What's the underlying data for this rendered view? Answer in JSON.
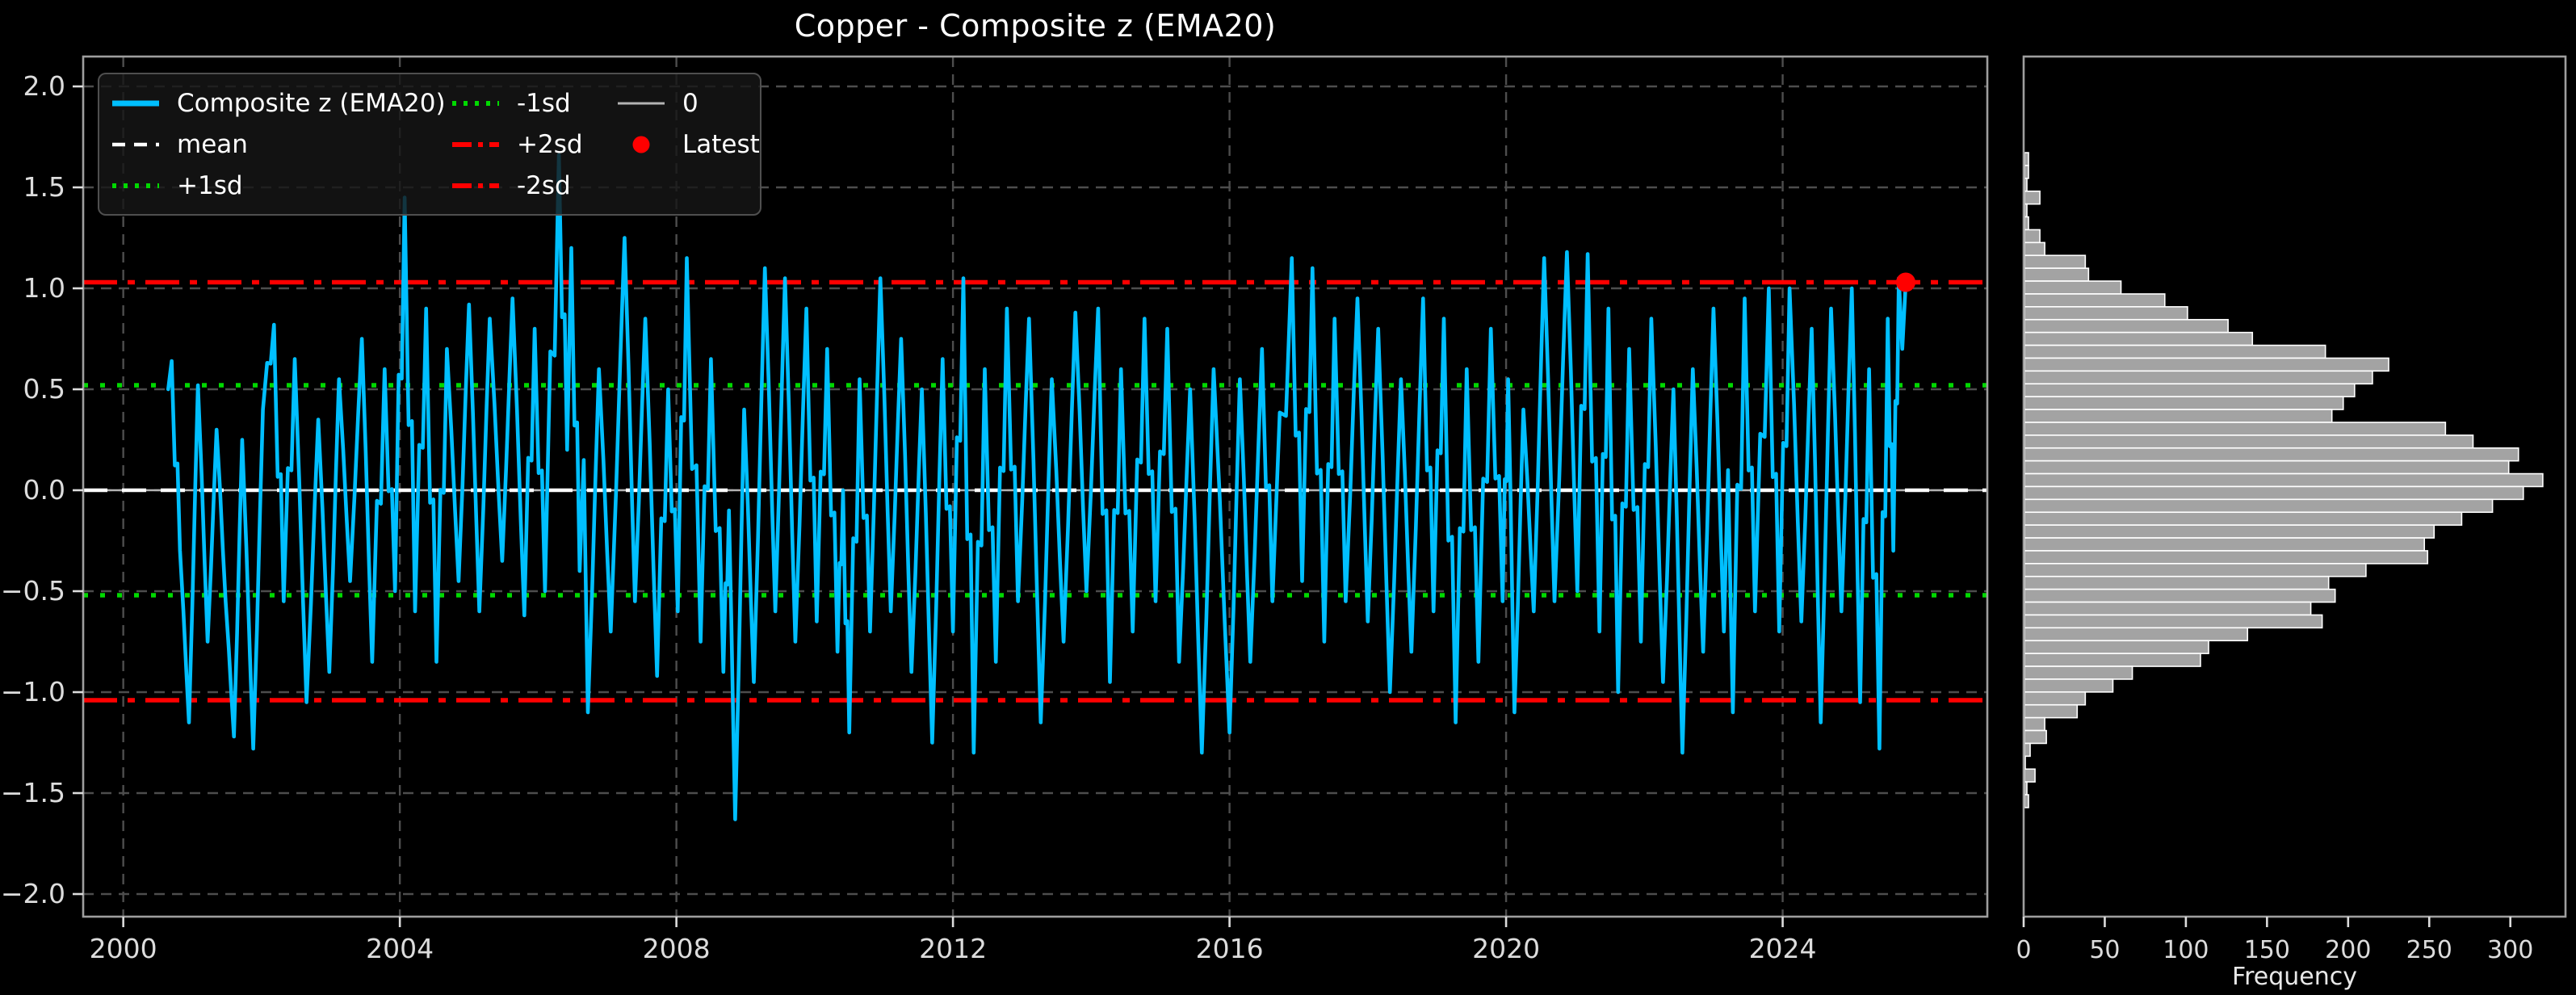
{
  "title": "Copper - Composite z (EMA20)",
  "colors": {
    "background": "#000000",
    "series_line": "#00BFFF",
    "mean_line": "#FFFFFF",
    "zero_line": "#B3B3B3",
    "sd1_line": "#00D900",
    "sd2_line": "#FF0000",
    "latest_marker": "#FF0000",
    "hist_bar": "#A3A3A3",
    "hist_bar_edge": "#FFFFFF",
    "grid": "#4D4D4D",
    "spine": "#9E9E9E",
    "tick_text": "#DCDCDC",
    "title_text": "#FFFFFF"
  },
  "legend": {
    "columns": [
      [
        {
          "label": "Composite z (EMA20)",
          "style": "cyan-solid"
        },
        {
          "label": "mean",
          "style": "white-dash"
        },
        {
          "label": "+1sd",
          "style": "green-dot"
        }
      ],
      [
        {
          "label": "-1sd",
          "style": "green-dot"
        },
        {
          "label": "+2sd",
          "style": "red-dashdot"
        },
        {
          "label": "-2sd",
          "style": "red-dashdot"
        }
      ],
      [
        {
          "label": "0",
          "style": "gray-solid"
        },
        {
          "label": "Latest",
          "style": "red-dot"
        }
      ]
    ]
  },
  "chart_data": [
    {
      "type": "line",
      "title": "Copper - Composite z (EMA20)",
      "xlabel": "",
      "ylabel": "",
      "xlim": [
        1999.42,
        2026.96
      ],
      "ylim": [
        -2.112,
        2.148
      ],
      "grid": true,
      "xticks": {
        "values": [
          2000,
          2004,
          2008,
          2012,
          2016,
          2020,
          2024
        ],
        "labels": [
          "2000",
          "2004",
          "2008",
          "2012",
          "2016",
          "2020",
          "2024"
        ]
      },
      "yticks": {
        "values": [
          2.0,
          1.5,
          1.0,
          0.5,
          0.0,
          -0.5,
          -1.0,
          -1.5,
          -2.0
        ],
        "labels": [
          "2.0",
          "1.5",
          "1.0",
          "0.5",
          "0.0",
          "−0.5",
          "−1.0",
          "−1.5",
          "−2.0"
        ]
      },
      "ref_lines": [
        {
          "name": "zero",
          "label": "0",
          "value": 0.0,
          "style": "gray-solid"
        },
        {
          "name": "mean",
          "label": "mean",
          "value": 0.0,
          "style": "white-dash"
        },
        {
          "name": "plus1sd",
          "label": "+1sd",
          "value": 0.52,
          "style": "green-dot"
        },
        {
          "name": "minus1sd",
          "label": "-1sd",
          "value": -0.52,
          "style": "green-dot"
        },
        {
          "name": "plus2sd",
          "label": "+2sd",
          "value": 1.03,
          "style": "red-dashdot"
        },
        {
          "name": "minus2sd",
          "label": "-2sd",
          "value": -1.04,
          "style": "red-dashdot"
        }
      ],
      "series": [
        {
          "name": "Composite z (EMA20)",
          "points": [
            [
              2000.65,
              0.5
            ],
            [
              2000.7,
              0.64
            ],
            [
              2000.82,
              -0.3
            ],
            [
              2000.95,
              -1.15
            ],
            [
              2001.08,
              0.52
            ],
            [
              2001.22,
              -0.75
            ],
            [
              2001.35,
              0.3
            ],
            [
              2001.48,
              -0.55
            ],
            [
              2001.6,
              -1.22
            ],
            [
              2001.72,
              0.25
            ],
            [
              2001.88,
              -1.28
            ],
            [
              2002.02,
              0.4
            ],
            [
              2002.18,
              0.82
            ],
            [
              2002.32,
              -0.55
            ],
            [
              2002.48,
              0.65
            ],
            [
              2002.65,
              -1.05
            ],
            [
              2002.82,
              0.35
            ],
            [
              2002.98,
              -0.9
            ],
            [
              2003.12,
              0.55
            ],
            [
              2003.28,
              -0.45
            ],
            [
              2003.45,
              0.75
            ],
            [
              2003.6,
              -0.85
            ],
            [
              2003.78,
              0.6
            ],
            [
              2003.93,
              -0.5
            ],
            [
              2004.07,
              1.45
            ],
            [
              2004.22,
              -0.6
            ],
            [
              2004.38,
              0.9
            ],
            [
              2004.53,
              -0.85
            ],
            [
              2004.68,
              0.7
            ],
            [
              2004.85,
              -0.45
            ],
            [
              2005.0,
              0.92
            ],
            [
              2005.15,
              -0.6
            ],
            [
              2005.3,
              0.85
            ],
            [
              2005.48,
              -0.35
            ],
            [
              2005.63,
              0.95
            ],
            [
              2005.8,
              -0.62
            ],
            [
              2005.95,
              0.8
            ],
            [
              2006.1,
              -0.5
            ],
            [
              2006.3,
              1.66
            ],
            [
              2006.42,
              0.2
            ],
            [
              2006.48,
              1.2
            ],
            [
              2006.6,
              -0.4
            ],
            [
              2006.66,
              0.15
            ],
            [
              2006.72,
              -1.1
            ],
            [
              2006.88,
              0.6
            ],
            [
              2007.05,
              -0.7
            ],
            [
              2007.25,
              1.25
            ],
            [
              2007.4,
              -0.55
            ],
            [
              2007.55,
              0.85
            ],
            [
              2007.72,
              -0.92
            ],
            [
              2007.88,
              0.5
            ],
            [
              2008.02,
              -0.6
            ],
            [
              2008.15,
              1.15
            ],
            [
              2008.35,
              -0.75
            ],
            [
              2008.5,
              0.65
            ],
            [
              2008.68,
              -0.9
            ],
            [
              2008.76,
              -0.1
            ],
            [
              2008.85,
              -1.63
            ],
            [
              2008.98,
              0.4
            ],
            [
              2009.12,
              -0.95
            ],
            [
              2009.28,
              1.1
            ],
            [
              2009.43,
              -0.6
            ],
            [
              2009.57,
              1.05
            ],
            [
              2009.72,
              -0.75
            ],
            [
              2009.88,
              0.9
            ],
            [
              2010.03,
              -0.65
            ],
            [
              2010.18,
              0.7
            ],
            [
              2010.33,
              -0.8
            ],
            [
              2010.41,
              0.0
            ],
            [
              2010.5,
              -1.2
            ],
            [
              2010.65,
              0.55
            ],
            [
              2010.8,
              -0.7
            ],
            [
              2010.95,
              1.05
            ],
            [
              2011.1,
              -0.6
            ],
            [
              2011.25,
              0.75
            ],
            [
              2011.4,
              -0.9
            ],
            [
              2011.55,
              0.5
            ],
            [
              2011.7,
              -1.25
            ],
            [
              2011.85,
              0.65
            ],
            [
              2012.0,
              -0.7
            ],
            [
              2012.15,
              1.05
            ],
            [
              2012.3,
              -1.3
            ],
            [
              2012.46,
              0.6
            ],
            [
              2012.62,
              -0.85
            ],
            [
              2012.78,
              0.9
            ],
            [
              2012.94,
              -0.55
            ],
            [
              2013.1,
              0.85
            ],
            [
              2013.27,
              -1.15
            ],
            [
              2013.43,
              0.55
            ],
            [
              2013.6,
              -0.75
            ],
            [
              2013.77,
              0.88
            ],
            [
              2013.93,
              -0.5
            ],
            [
              2014.1,
              0.9
            ],
            [
              2014.27,
              -0.95
            ],
            [
              2014.43,
              0.6
            ],
            [
              2014.6,
              -0.7
            ],
            [
              2014.77,
              0.85
            ],
            [
              2014.93,
              -0.55
            ],
            [
              2015.1,
              0.8
            ],
            [
              2015.27,
              -0.85
            ],
            [
              2015.43,
              0.5
            ],
            [
              2015.6,
              -1.3
            ],
            [
              2015.77,
              0.6
            ],
            [
              2016.0,
              -1.2
            ],
            [
              2016.15,
              0.55
            ],
            [
              2016.3,
              -0.85
            ],
            [
              2016.47,
              0.7
            ],
            [
              2016.62,
              -0.55
            ],
            [
              2016.9,
              1.15
            ],
            [
              2017.05,
              -0.45
            ],
            [
              2017.2,
              1.1
            ],
            [
              2017.37,
              -0.75
            ],
            [
              2017.52,
              0.85
            ],
            [
              2017.68,
              -0.55
            ],
            [
              2017.85,
              0.95
            ],
            [
              2018.0,
              -0.65
            ],
            [
              2018.15,
              0.8
            ],
            [
              2018.32,
              -1.0
            ],
            [
              2018.48,
              0.55
            ],
            [
              2018.63,
              -0.8
            ],
            [
              2018.8,
              0.95
            ],
            [
              2018.95,
              -0.6
            ],
            [
              2019.1,
              0.85
            ],
            [
              2019.27,
              -1.15
            ],
            [
              2019.43,
              0.6
            ],
            [
              2019.6,
              -0.85
            ],
            [
              2019.78,
              0.8
            ],
            [
              2019.95,
              -0.55
            ],
            [
              2020.03,
              0.55
            ],
            [
              2020.12,
              -1.1
            ],
            [
              2020.25,
              0.4
            ],
            [
              2020.4,
              -0.6
            ],
            [
              2020.55,
              1.15
            ],
            [
              2020.7,
              -0.55
            ],
            [
              2020.88,
              1.18
            ],
            [
              2021.03,
              -0.5
            ],
            [
              2021.18,
              1.17
            ],
            [
              2021.35,
              -0.7
            ],
            [
              2021.48,
              0.9
            ],
            [
              2021.62,
              -1.0
            ],
            [
              2021.78,
              0.7
            ],
            [
              2021.95,
              -0.75
            ],
            [
              2022.1,
              0.85
            ],
            [
              2022.27,
              -0.95
            ],
            [
              2022.42,
              0.5
            ],
            [
              2022.55,
              -1.3
            ],
            [
              2022.7,
              0.6
            ],
            [
              2022.85,
              -0.8
            ],
            [
              2023.0,
              0.9
            ],
            [
              2023.15,
              -0.7
            ],
            [
              2023.21,
              0.1
            ],
            [
              2023.28,
              -1.1
            ],
            [
              2023.45,
              0.95
            ],
            [
              2023.6,
              -0.6
            ],
            [
              2023.8,
              1.0
            ],
            [
              2023.95,
              -0.7
            ],
            [
              2024.1,
              1.0
            ],
            [
              2024.27,
              -0.65
            ],
            [
              2024.42,
              0.8
            ],
            [
              2024.55,
              -1.15
            ],
            [
              2024.7,
              0.9
            ],
            [
              2024.85,
              -0.6
            ],
            [
              2025.0,
              1.0
            ],
            [
              2025.12,
              -1.05
            ],
            [
              2025.25,
              0.6
            ],
            [
              2025.4,
              -1.28
            ],
            [
              2025.52,
              0.85
            ],
            [
              2025.6,
              -0.3
            ],
            [
              2025.68,
              1.05
            ],
            [
              2025.73,
              0.7
            ],
            [
              2025.78,
              1.03
            ]
          ]
        }
      ],
      "latest": {
        "x": 2025.78,
        "y": 1.03,
        "label": "Latest"
      }
    },
    {
      "type": "bar",
      "orientation": "horizontal",
      "xlabel": "Frequency",
      "ylabel": "",
      "xlim": [
        0,
        334
      ],
      "ylim": [
        -2.112,
        2.148
      ],
      "xticks": {
        "values": [
          0,
          50,
          100,
          150,
          200,
          250,
          300
        ],
        "labels": [
          "0",
          "50",
          "100",
          "150",
          "200",
          "250",
          "300"
        ]
      },
      "bins": {
        "z_top_center": 1.64,
        "bin_height": 0.0636,
        "frequencies": [
          3,
          3,
          2,
          10,
          2,
          3,
          10,
          13,
          38,
          40,
          60,
          87,
          101,
          126,
          141,
          186,
          225,
          215,
          204,
          197,
          190,
          260,
          277,
          305,
          299,
          320,
          308,
          289,
          270,
          253,
          247,
          249,
          211,
          188,
          192,
          177,
          184,
          138,
          114,
          109,
          67,
          55,
          38,
          33,
          13,
          14,
          4,
          1,
          7,
          2,
          3
        ]
      }
    }
  ]
}
